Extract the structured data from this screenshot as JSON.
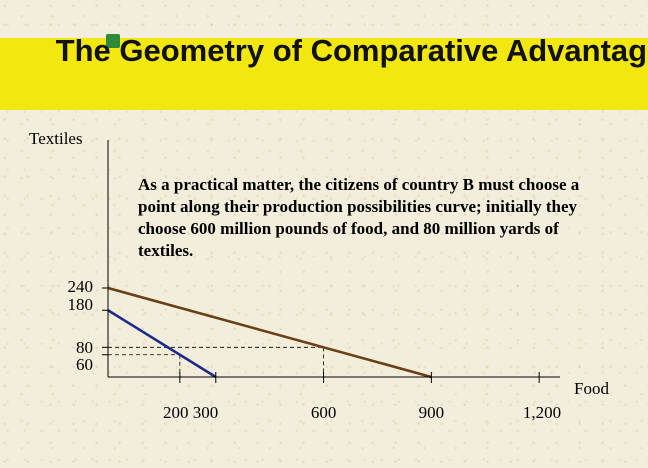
{
  "slide": {
    "title": "The Geometry of Comparative Advantage",
    "annotation": "As a practical matter, the citizens of country B must choose a point along their production possibilities curve; initially they choose 600 million pounds of food, and 80 million yards of textiles."
  },
  "chart_data": {
    "type": "line",
    "title": "The Geometry of Comparative Advantage",
    "xlabel": "Food",
    "ylabel": "Textiles",
    "xlim": [
      0,
      1200
    ],
    "ylim": [
      0,
      240
    ],
    "x_ticks": [
      {
        "value": 200,
        "label": "200"
      },
      {
        "value": 300,
        "label": "300"
      },
      {
        "value": 600,
        "label": "600"
      },
      {
        "value": 900,
        "label": "900"
      },
      {
        "value": 1200,
        "label": "1,200"
      }
    ],
    "y_ticks": [
      {
        "value": 240,
        "label": "240"
      },
      {
        "value": 180,
        "label": "180"
      },
      {
        "value": 80,
        "label": "80"
      },
      {
        "value": 60,
        "label": "60"
      }
    ],
    "x_tick_text": "200 300",
    "series": [
      {
        "color": "#1c2a8a",
        "points": [
          [
            0,
            180
          ],
          [
            300,
            0
          ]
        ]
      },
      {
        "color": "#6b3f16",
        "points": [
          [
            0,
            240
          ],
          [
            900,
            0
          ]
        ]
      }
    ],
    "reference_points": [
      {
        "x": 200,
        "y": 60
      },
      {
        "x": 600,
        "y": 80
      }
    ]
  }
}
